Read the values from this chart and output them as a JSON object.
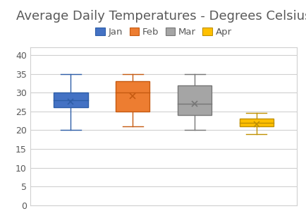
{
  "title": "Average Daily Temperatures - Degrees Celsius",
  "months": [
    "Jan",
    "Feb",
    "Mar",
    "Apr"
  ],
  "colors": [
    "#4472C4",
    "#ED7D31",
    "#A5A5A5",
    "#FFC000"
  ],
  "border_colors": [
    "#2E5EA8",
    "#C55A11",
    "#767676",
    "#BF9000"
  ],
  "box_data": [
    {
      "whisker_low": 20,
      "q1": 26,
      "median": 28,
      "q3": 30,
      "whisker_high": 35,
      "mean": 27.5
    },
    {
      "whisker_low": 21,
      "q1": 25,
      "median": 30,
      "q3": 33,
      "whisker_high": 35,
      "mean": 29
    },
    {
      "whisker_low": 20,
      "q1": 24,
      "median": 27,
      "q3": 32,
      "whisker_high": 35,
      "mean": 27
    },
    {
      "whisker_low": 19,
      "q1": 21,
      "median": 22,
      "q3": 23,
      "whisker_high": 24.5,
      "mean": 21.5
    }
  ],
  "ylim": [
    0,
    42
  ],
  "yticks": [
    0,
    5,
    10,
    15,
    20,
    25,
    30,
    35,
    40
  ],
  "background_color": "#FFFFFF",
  "plot_bg_color": "#FFFFFF",
  "grid_color": "#D0D0D0",
  "title_fontsize": 13,
  "legend_fontsize": 9.5,
  "tick_fontsize": 9,
  "box_width": 0.55
}
